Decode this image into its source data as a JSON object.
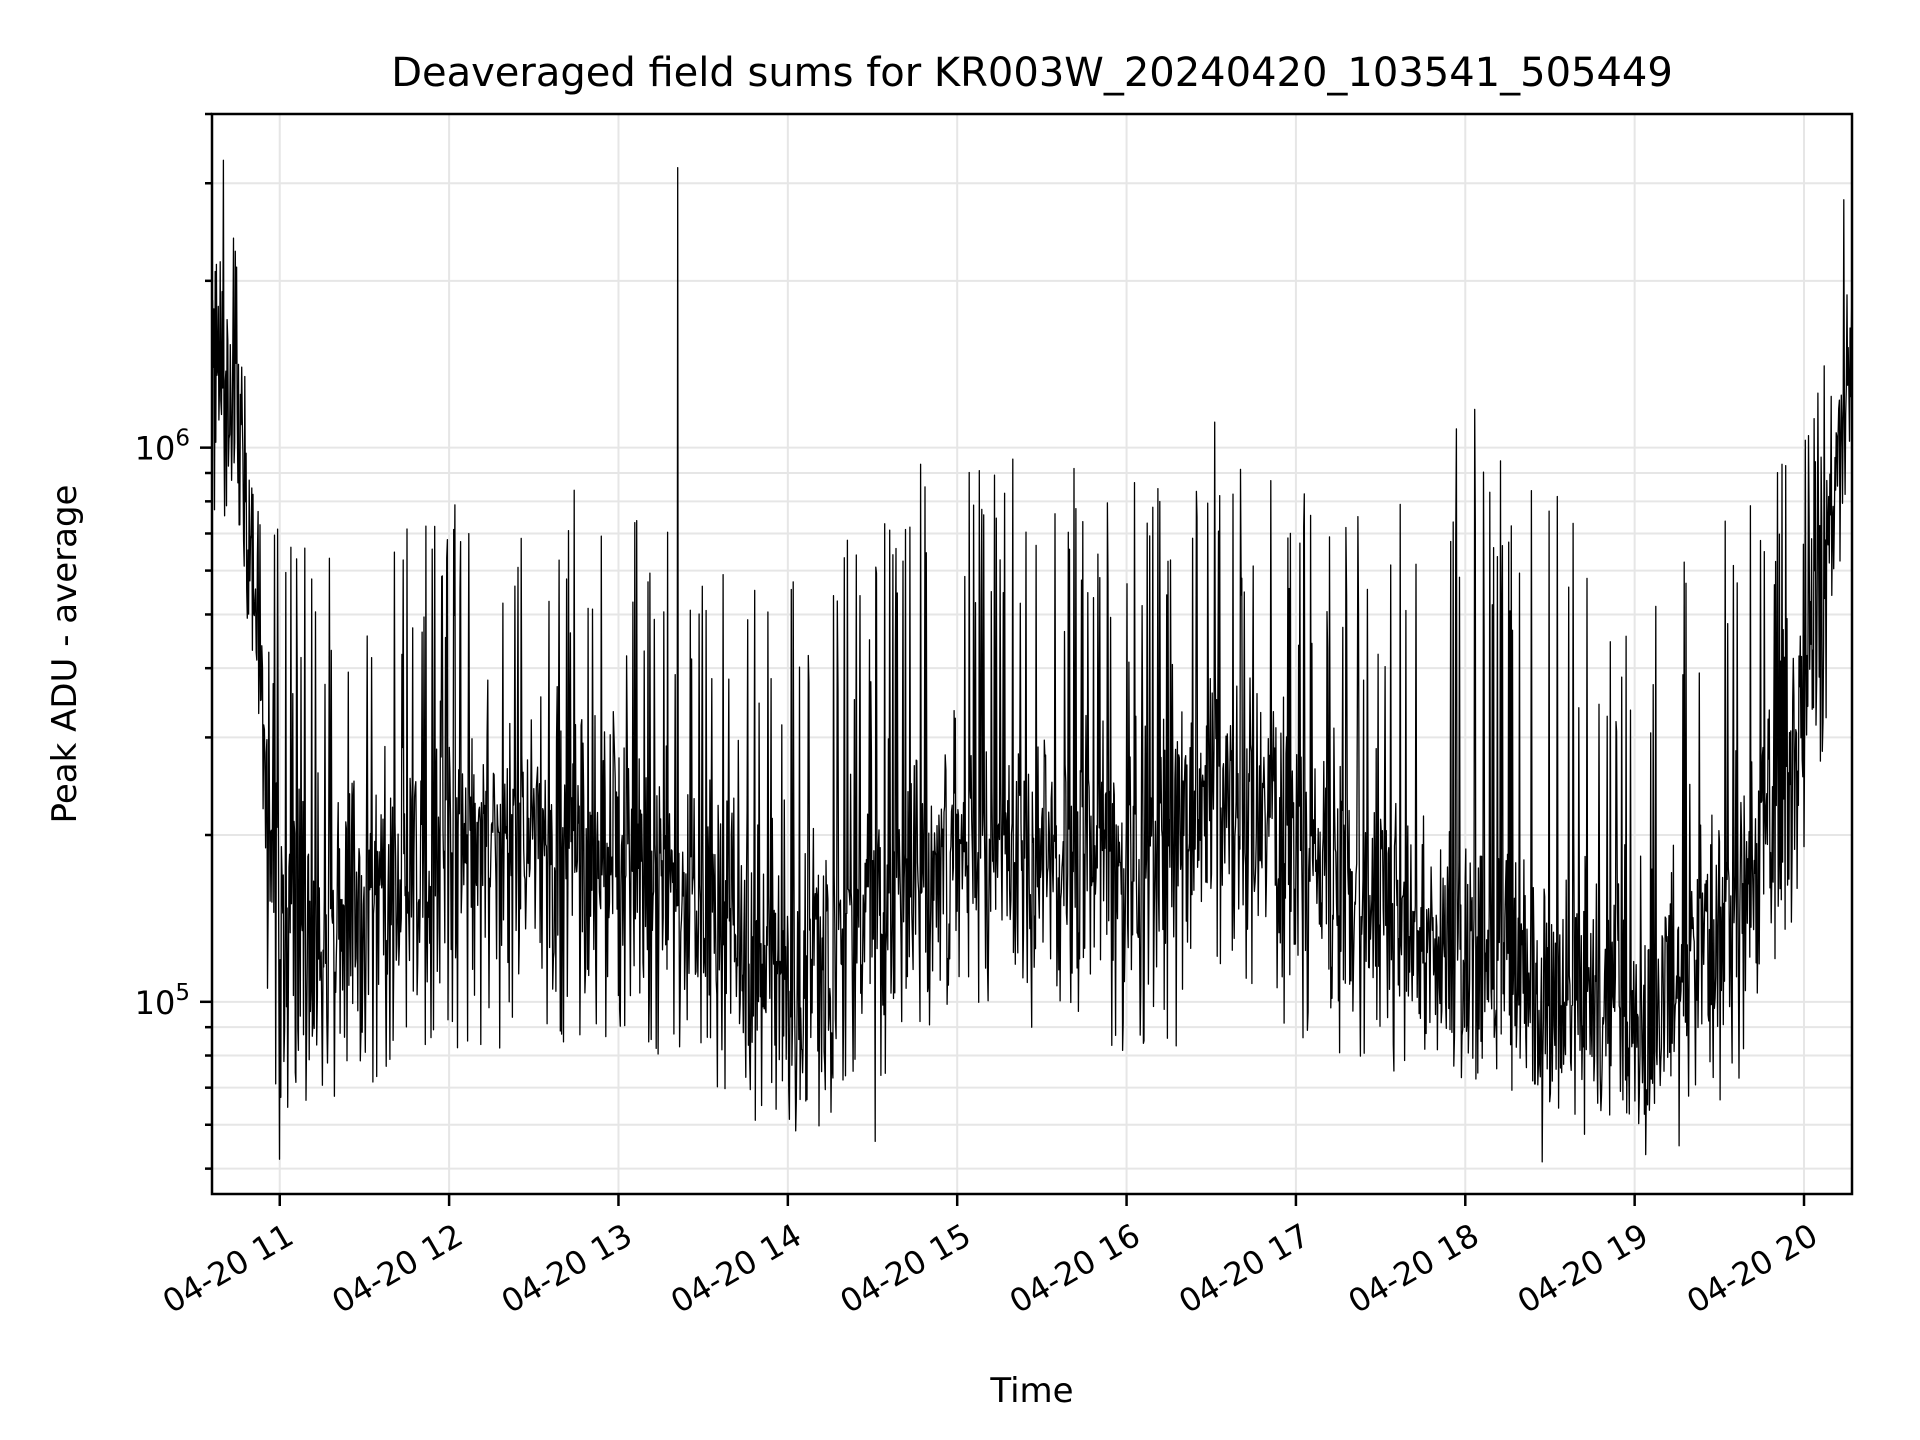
{
  "chart_data": {
    "type": "line",
    "title": "Deaveraged field sums for KR003W_20240420_103541_505449",
    "xlabel": "Time",
    "ylabel": "Peak ADU - average",
    "yscale": "log",
    "xlim": [
      "2024-04-20 10:36",
      "2024-04-20 20:17"
    ],
    "ylim": [
      45000,
      4000000
    ],
    "grid": true,
    "line_color": "#000000",
    "x_ticks": [
      {
        "value": "2024-04-20 11:00",
        "label": "04-20 11"
      },
      {
        "value": "2024-04-20 12:00",
        "label": "04-20 12"
      },
      {
        "value": "2024-04-20 13:00",
        "label": "04-20 13"
      },
      {
        "value": "2024-04-20 14:00",
        "label": "04-20 14"
      },
      {
        "value": "2024-04-20 15:00",
        "label": "04-20 15"
      },
      {
        "value": "2024-04-20 16:00",
        "label": "04-20 16"
      },
      {
        "value": "2024-04-20 17:00",
        "label": "04-20 17"
      },
      {
        "value": "2024-04-20 18:00",
        "label": "04-20 18"
      },
      {
        "value": "2024-04-20 19:00",
        "label": "04-20 19"
      },
      {
        "value": "2024-04-20 20:00",
        "label": "04-20 20"
      }
    ],
    "y_ticks": [
      {
        "value": 100000,
        "base": "10",
        "exp": "5"
      },
      {
        "value": 1000000,
        "base": "10",
        "exp": "6"
      }
    ],
    "envelope": {
      "time": [
        "10:36",
        "10:45",
        "10:50",
        "10:55",
        "11:00",
        "11:15",
        "11:30",
        "11:45",
        "12:00",
        "12:15",
        "12:30",
        "12:45",
        "13:00",
        "13:15",
        "13:30",
        "13:45",
        "14:00",
        "14:15",
        "14:30",
        "14:45",
        "15:00",
        "15:15",
        "15:30",
        "15:45",
        "16:00",
        "16:15",
        "16:30",
        "16:45",
        "17:00",
        "17:15",
        "17:30",
        "17:45",
        "18:00",
        "18:15",
        "18:30",
        "18:45",
        "19:00",
        "19:15",
        "19:30",
        "19:45",
        "20:00",
        "20:10",
        "20:17"
      ],
      "typical": [
        1500000,
        1300000,
        600000,
        300000,
        150000,
        130000,
        160000,
        180000,
        200000,
        190000,
        210000,
        200000,
        190000,
        160000,
        150000,
        130000,
        120000,
        120000,
        150000,
        170000,
        200000,
        190000,
        180000,
        190000,
        200000,
        200000,
        260000,
        220000,
        200000,
        170000,
        150000,
        140000,
        125000,
        115000,
        105000,
        100000,
        95000,
        110000,
        150000,
        200000,
        350000,
        800000,
        1500000
      ],
      "spike": [
        2600000,
        2000000,
        1100000,
        850000,
        800000,
        650000,
        800000,
        850000,
        850000,
        900000,
        800000,
        850000,
        800000,
        750000,
        650000,
        550000,
        600000,
        650000,
        800000,
        1000000,
        1100000,
        1000000,
        900000,
        950000,
        1000000,
        1100000,
        1250000,
        1000000,
        850000,
        750000,
        800000,
        1000000,
        1200000,
        1100000,
        1000000,
        750000,
        450000,
        600000,
        750000,
        900000,
        1100000,
        1700000,
        2500000
      ],
      "dip": [
        1000000,
        800000,
        300000,
        80000,
        60000,
        65000,
        70000,
        75000,
        78000,
        75000,
        78000,
        80000,
        82000,
        75000,
        68000,
        62000,
        58000,
        56000,
        70000,
        80000,
        95000,
        95000,
        85000,
        85000,
        80000,
        80000,
        90000,
        85000,
        80000,
        75000,
        70000,
        70000,
        70000,
        68000,
        66000,
        64000,
        62000,
        60000,
        62000,
        75000,
        150000,
        350000,
        800000
      ]
    },
    "notable_points": [
      {
        "time": "10:40",
        "value": 3300000
      },
      {
        "time": "13:21",
        "value": 3200000
      },
      {
        "time": "20:14",
        "value": 2800000
      },
      {
        "time": "11:00",
        "value": 52000
      },
      {
        "time": "19:04",
        "value": 53000
      },
      {
        "time": "14:31",
        "value": 56000
      }
    ]
  }
}
